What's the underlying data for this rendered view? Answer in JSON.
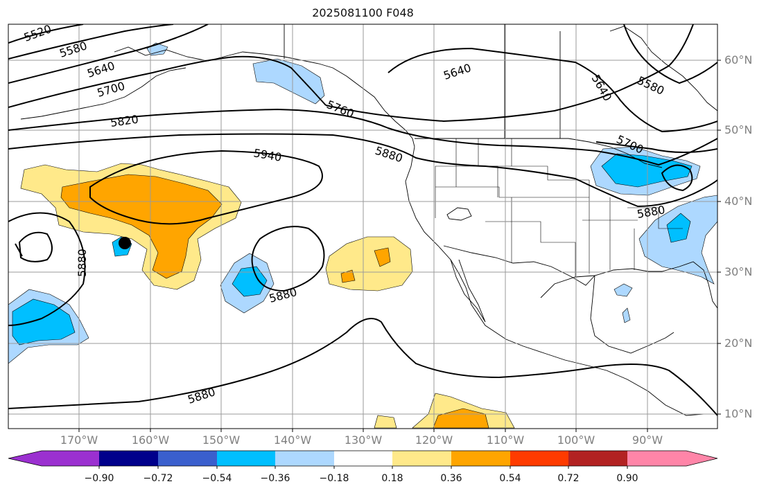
{
  "title": "2025081100 F048",
  "map": {
    "latitude_labels": [
      "60°N",
      "50°N",
      "40°N",
      "30°N",
      "20°N",
      "10°N"
    ],
    "longitude_labels": [
      "170°W",
      "160°W",
      "150°W",
      "140°W",
      "130°W",
      "120°W",
      "110°W",
      "100°W",
      "90°W"
    ],
    "contour_labels": [
      "5520",
      "5580",
      "5640",
      "5700",
      "5760",
      "5820",
      "5880",
      "5940",
      "5880",
      "5880",
      "5880",
      "5880",
      "5640",
      "5640",
      "5580",
      "5700"
    ],
    "contour_style": {
      "line_color": "#000000"
    },
    "marker": {
      "type": "filled-circle",
      "color": "#000000"
    }
  },
  "colorbar": {
    "tick_labels": [
      "−0.90",
      "−0.72",
      "−0.54",
      "−0.36",
      "−0.18",
      "0.18",
      "0.36",
      "0.54",
      "0.72",
      "0.90"
    ],
    "colors": [
      "#9b30d0",
      "#00008b",
      "#3a5fcd",
      "#00bfff",
      "#add8ff",
      "#ffffff",
      "#ffe98a",
      "#ffa500",
      "#ff3b00",
      "#b22222",
      "#ff85a8"
    ]
  }
}
